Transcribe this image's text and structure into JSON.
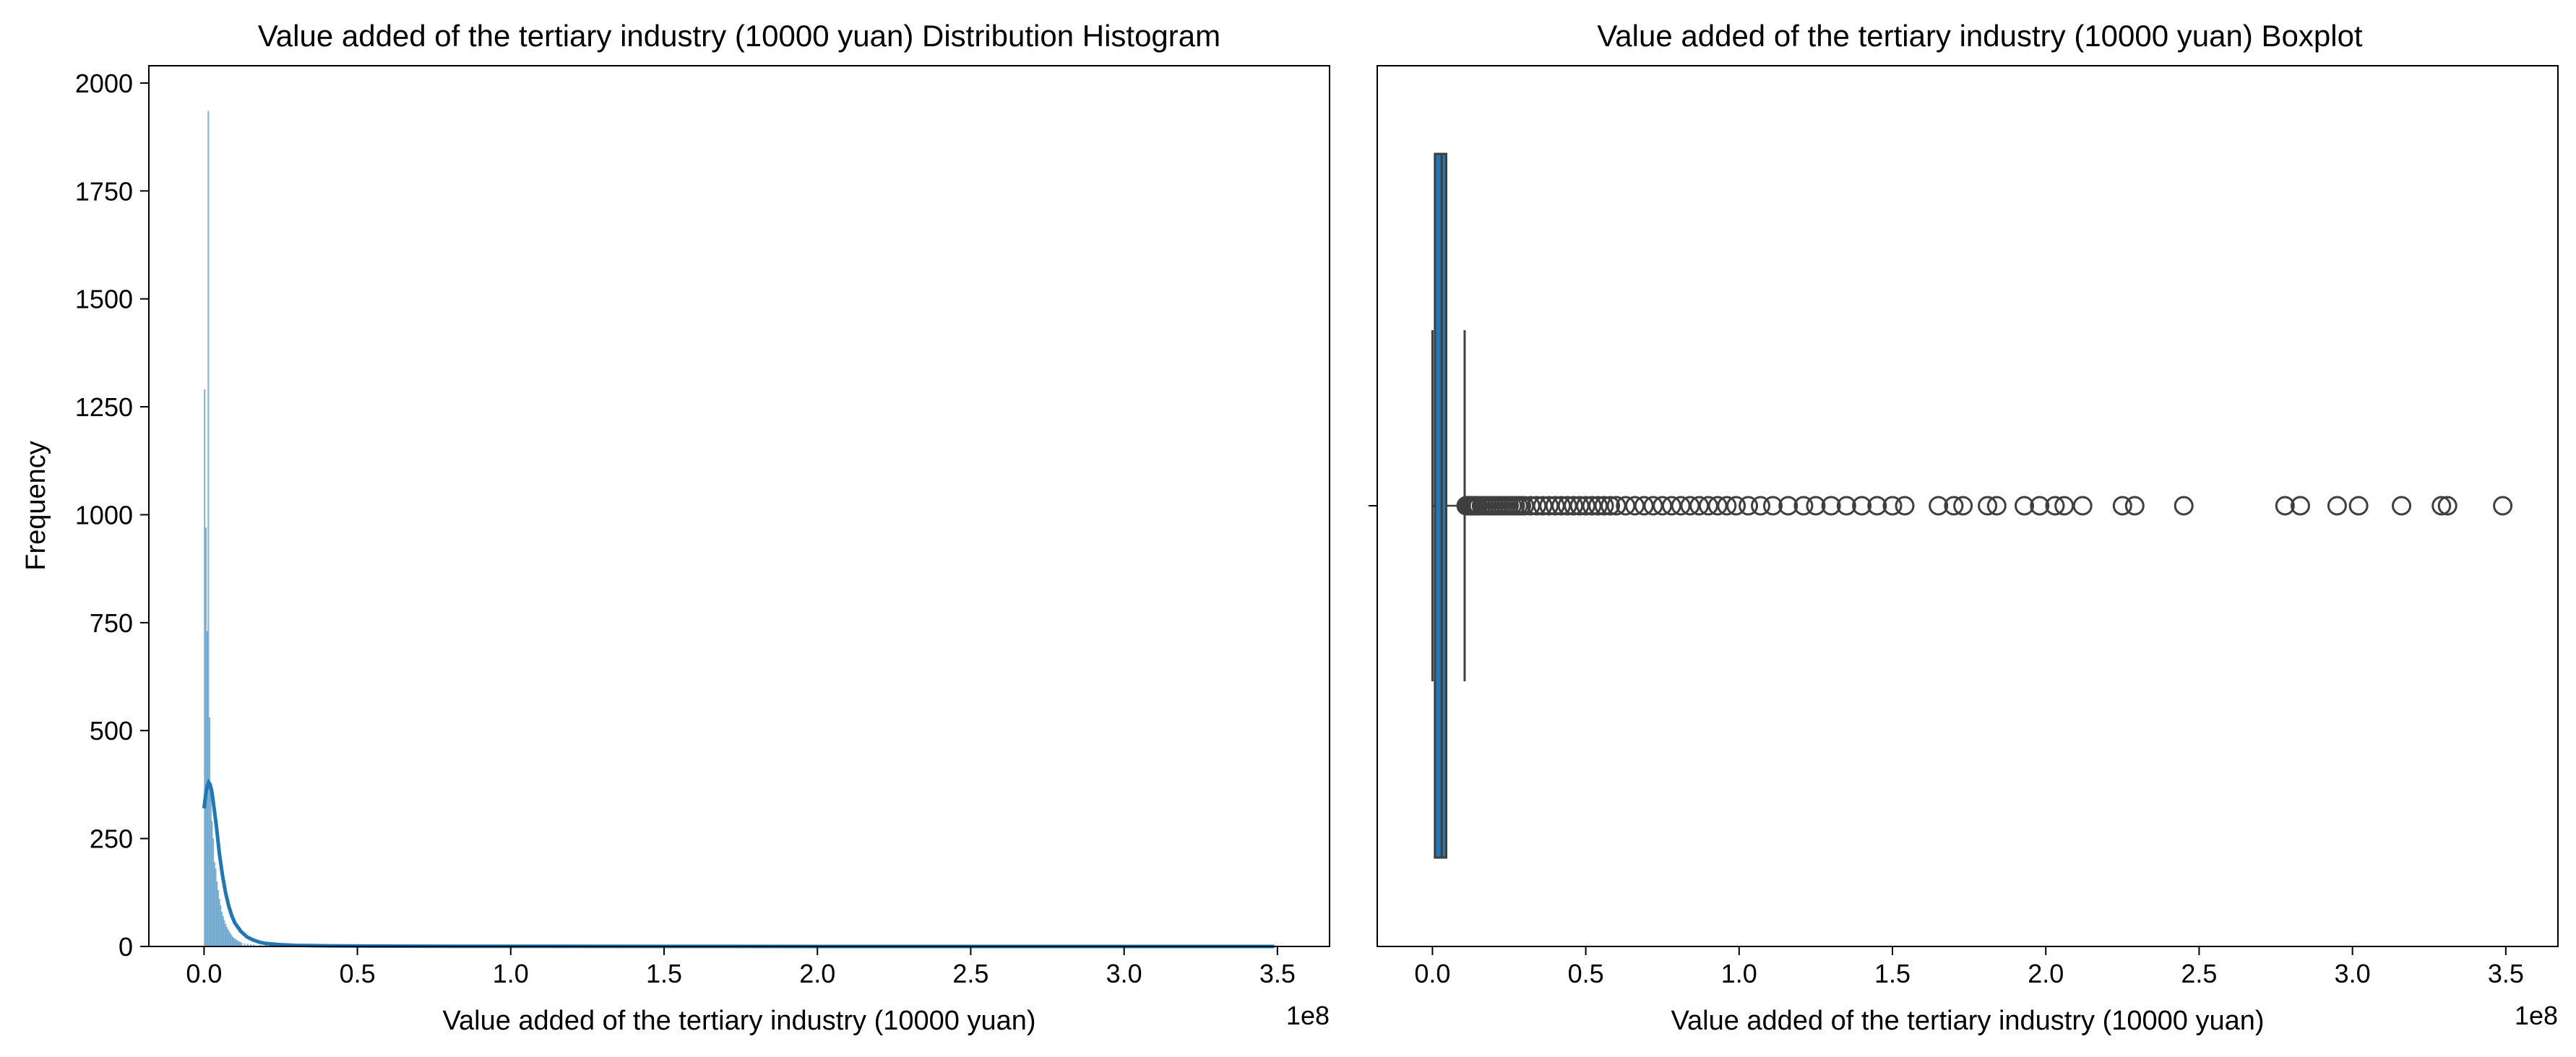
{
  "chart_data": [
    {
      "type": "histogram",
      "title": "Value added of the tertiary industry (10000 yuan) Distribution Histogram",
      "xlabel": "Value added of the tertiary industry (10000 yuan)",
      "ylabel": "Frequency",
      "x_offset_text": "1e8",
      "xlim": [
        -1.8,
        36.7
      ],
      "ylim": [
        0,
        2040
      ],
      "x_ticks": [
        0.0,
        0.5,
        1.0,
        1.5,
        2.0,
        2.5,
        3.0,
        3.5
      ],
      "x_tick_labels": [
        "0.0",
        "0.5",
        "1.0",
        "1.5",
        "2.0",
        "2.5",
        "3.0",
        "3.5"
      ],
      "y_ticks": [
        0,
        250,
        500,
        750,
        1000,
        1250,
        1500,
        1750,
        2000
      ],
      "y_tick_labels": [
        "0",
        "250",
        "500",
        "750",
        "1000",
        "1250",
        "1500",
        "1750",
        "2000"
      ],
      "bar_color": "#1f77b4",
      "kde_color": "#1f77b4",
      "bins": [
        {
          "x": 0.0,
          "count": 1290
        },
        {
          "x": 0.04,
          "count": 970
        },
        {
          "x": 0.08,
          "count": 730
        },
        {
          "x": 0.12,
          "count": 1935
        },
        {
          "x": 0.16,
          "count": 530
        },
        {
          "x": 0.2,
          "count": 360
        },
        {
          "x": 0.24,
          "count": 290
        },
        {
          "x": 0.28,
          "count": 250
        },
        {
          "x": 0.32,
          "count": 195
        },
        {
          "x": 0.36,
          "count": 180
        },
        {
          "x": 0.4,
          "count": 150
        },
        {
          "x": 0.44,
          "count": 130
        },
        {
          "x": 0.48,
          "count": 110
        },
        {
          "x": 0.52,
          "count": 95
        },
        {
          "x": 0.56,
          "count": 80
        },
        {
          "x": 0.6,
          "count": 70
        },
        {
          "x": 0.64,
          "count": 60
        },
        {
          "x": 0.68,
          "count": 52
        },
        {
          "x": 0.72,
          "count": 45
        },
        {
          "x": 0.76,
          "count": 40
        },
        {
          "x": 0.8,
          "count": 35
        },
        {
          "x": 0.84,
          "count": 30
        },
        {
          "x": 0.88,
          "count": 26
        },
        {
          "x": 0.92,
          "count": 22
        },
        {
          "x": 0.96,
          "count": 19
        },
        {
          "x": 1.0,
          "count": 17
        },
        {
          "x": 1.04,
          "count": 15
        },
        {
          "x": 1.08,
          "count": 13
        },
        {
          "x": 1.12,
          "count": 11
        },
        {
          "x": 1.16,
          "count": 10
        },
        {
          "x": 1.2,
          "count": 9
        },
        {
          "x": 1.3,
          "count": 7
        },
        {
          "x": 1.4,
          "count": 6
        },
        {
          "x": 1.5,
          "count": 5
        },
        {
          "x": 1.6,
          "count": 4
        },
        {
          "x": 1.8,
          "count": 3
        },
        {
          "x": 2.0,
          "count": 3
        },
        {
          "x": 2.4,
          "count": 2
        },
        {
          "x": 2.8,
          "count": 2
        },
        {
          "x": 3.2,
          "count": 1
        },
        {
          "x": 3.6,
          "count": 1
        },
        {
          "x": 4.0,
          "count": 1
        }
      ],
      "kde": [
        [
          0.0,
          320
        ],
        [
          0.05,
          350
        ],
        [
          0.1,
          370
        ],
        [
          0.15,
          380
        ],
        [
          0.2,
          375
        ],
        [
          0.25,
          360
        ],
        [
          0.3,
          335
        ],
        [
          0.4,
          280
        ],
        [
          0.5,
          215
        ],
        [
          0.6,
          165
        ],
        [
          0.7,
          125
        ],
        [
          0.8,
          95
        ],
        [
          0.9,
          72
        ],
        [
          1.0,
          55
        ],
        [
          1.2,
          35
        ],
        [
          1.4,
          22
        ],
        [
          1.6,
          15
        ],
        [
          1.8,
          10
        ],
        [
          2.0,
          7
        ],
        [
          2.5,
          4
        ],
        [
          3.0,
          2.5
        ],
        [
          4.0,
          1.5
        ],
        [
          5.0,
          1
        ],
        [
          7.0,
          0.6
        ],
        [
          10.0,
          0.4
        ],
        [
          15.0,
          0.2
        ],
        [
          20.0,
          0.1
        ],
        [
          25.0,
          0.05
        ],
        [
          30.0,
          0.02
        ],
        [
          34.9,
          0
        ]
      ]
    },
    {
      "type": "box",
      "title": "Value added of the tertiary industry (10000 yuan) Boxplot",
      "xlabel": "Value added of the tertiary industry (10000 yuan)",
      "x_offset_text": "1e8",
      "xlim": [
        -1.8,
        36.7
      ],
      "x_ticks": [
        0.0,
        0.5,
        1.0,
        1.5,
        2.0,
        2.5,
        3.0,
        3.5
      ],
      "x_tick_labels": [
        "0.0",
        "0.5",
        "1.0",
        "1.5",
        "2.0",
        "2.5",
        "3.0",
        "3.5"
      ],
      "box_color": "#1f77b4",
      "line_color": "#3f3f3f",
      "whisker_low": 0.0,
      "q1": 0.08,
      "median": 0.3,
      "q3": 0.45,
      "whisker_high": 1.05,
      "outliers": [
        1.1,
        1.15,
        1.2,
        1.25,
        1.3,
        1.35,
        1.4,
        1.45,
        1.5,
        1.6,
        1.7,
        1.8,
        1.9,
        2.0,
        2.1,
        2.2,
        2.3,
        2.4,
        2.5,
        2.6,
        2.7,
        2.8,
        2.9,
        3.0,
        3.2,
        3.4,
        3.6,
        3.8,
        4.0,
        4.2,
        4.4,
        4.6,
        4.8,
        5.0,
        5.2,
        5.4,
        5.6,
        5.8,
        6.0,
        6.3,
        6.6,
        6.9,
        7.2,
        7.5,
        7.8,
        8.1,
        8.4,
        8.7,
        9.0,
        9.3,
        9.6,
        9.9,
        10.3,
        10.7,
        11.1,
        11.6,
        12.1,
        12.5,
        13.0,
        13.5,
        14.0,
        14.5,
        15.0,
        15.4,
        16.5,
        17.0,
        17.3,
        18.1,
        18.4,
        19.3,
        19.8,
        20.3,
        20.6,
        21.2,
        22.5,
        22.9,
        24.5,
        27.8,
        28.3,
        29.5,
        30.2,
        31.6,
        32.9,
        33.1,
        34.9
      ]
    }
  ]
}
